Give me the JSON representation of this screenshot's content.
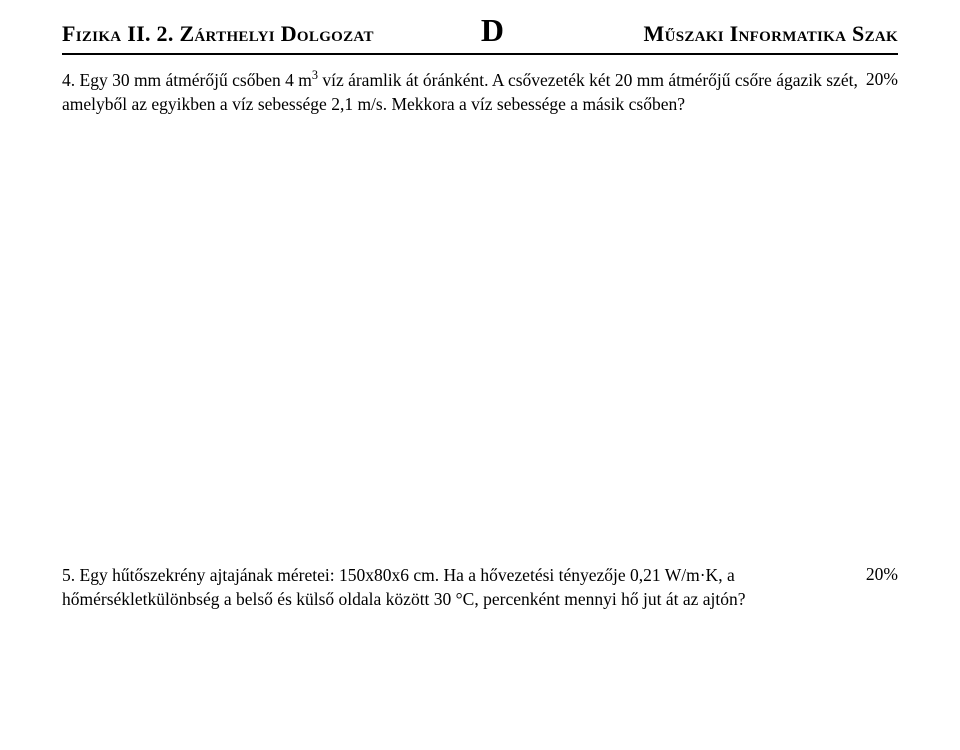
{
  "header": {
    "left_main": "Fizika II. 2. Zárthelyi Dolgozat",
    "center": "D",
    "right_main": "Műszaki Informatika Szak"
  },
  "problem4": {
    "number": "4.",
    "text_before_sup": " Egy 30 mm átmérőjű csőben 4 m",
    "sup": "3",
    "text_after_sup": " víz áramlik át óránként. A csővezeték két 20 mm átmérőjű csőre ágazik szét, amelyből az egyikben a víz sebessége 2,1 m/s. Mekkora a víz sebessége a másik csőben?",
    "percent": "20%"
  },
  "problem5": {
    "number": "5.",
    "text": " Egy hűtőszekrény ajtajának méretei: 150x80x6 cm. Ha a hővezetési tényezője 0,21 W/m·K, a hőmérsékletkülönbség a belső és külső oldala között 30 °C, percenként mennyi hő jut át az ajtón?",
    "percent": "20%"
  }
}
